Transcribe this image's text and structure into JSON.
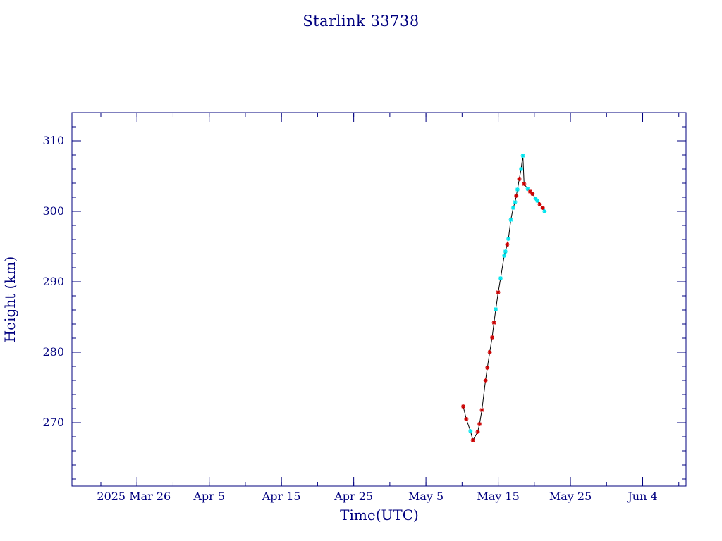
{
  "chart_data": {
    "type": "line",
    "title": "Starlink 33738",
    "xlabel": "Time(UTC)",
    "ylabel": "Height (km)",
    "x_axis": {
      "kind": "date",
      "range": [
        "2025-03-17",
        "2025-06-10"
      ],
      "major_ticks": [
        {
          "date": "2025-03-26",
          "label": "2025 Mar 26"
        },
        {
          "date": "2025-04-05",
          "label": "Apr  5"
        },
        {
          "date": "2025-04-15",
          "label": "Apr 15"
        },
        {
          "date": "2025-04-25",
          "label": "Apr 25"
        },
        {
          "date": "2025-05-05",
          "label": "May  5"
        },
        {
          "date": "2025-05-15",
          "label": "May 15"
        },
        {
          "date": "2025-05-25",
          "label": "May 25"
        },
        {
          "date": "2025-06-04",
          "label": "Jun  4"
        }
      ]
    },
    "y_axis": {
      "range": [
        261,
        314
      ],
      "major_ticks": [
        270,
        280,
        290,
        300,
        310
      ]
    },
    "grid": false,
    "line_color": "#000000",
    "marker_colors": {
      "red": "#cc0000",
      "cyan": "#00e5ee"
    },
    "points": [
      {
        "t": "2025-05-10T04:00",
        "h": 272.3,
        "c": "red"
      },
      {
        "t": "2025-05-10T14:00",
        "h": 270.5,
        "c": "red"
      },
      {
        "t": "2025-05-11T04:00",
        "h": 268.8,
        "c": "cyan"
      },
      {
        "t": "2025-05-11T12:00",
        "h": 267.5,
        "c": "red"
      },
      {
        "t": "2025-05-12T04:00",
        "h": 268.7,
        "c": "red"
      },
      {
        "t": "2025-05-12T10:00",
        "h": 269.8,
        "c": "red"
      },
      {
        "t": "2025-05-12T18:00",
        "h": 271.8,
        "c": "red"
      },
      {
        "t": "2025-05-13T06:00",
        "h": 276.0,
        "c": "red"
      },
      {
        "t": "2025-05-13T12:00",
        "h": 277.8,
        "c": "red"
      },
      {
        "t": "2025-05-13T20:00",
        "h": 280.0,
        "c": "red"
      },
      {
        "t": "2025-05-14T04:00",
        "h": 282.1,
        "c": "red"
      },
      {
        "t": "2025-05-14T10:00",
        "h": 284.2,
        "c": "red"
      },
      {
        "t": "2025-05-14T16:00",
        "h": 286.1,
        "c": "cyan"
      },
      {
        "t": "2025-05-15T00:00",
        "h": 288.5,
        "c": "red"
      },
      {
        "t": "2025-05-15T08:00",
        "h": 290.5,
        "c": "cyan"
      },
      {
        "t": "2025-05-15T20:00",
        "h": 293.7,
        "c": "cyan"
      },
      {
        "t": "2025-05-16T00:00",
        "h": 294.3,
        "c": "cyan"
      },
      {
        "t": "2025-05-16T06:00",
        "h": 295.3,
        "c": "red"
      },
      {
        "t": "2025-05-16T10:00",
        "h": 296.1,
        "c": "cyan"
      },
      {
        "t": "2025-05-16T18:00",
        "h": 298.8,
        "c": "cyan"
      },
      {
        "t": "2025-05-17T02:00",
        "h": 300.5,
        "c": "cyan"
      },
      {
        "t": "2025-05-17T08:00",
        "h": 301.3,
        "c": "cyan"
      },
      {
        "t": "2025-05-17T12:00",
        "h": 302.2,
        "c": "red"
      },
      {
        "t": "2025-05-17T16:00",
        "h": 303.1,
        "c": "cyan"
      },
      {
        "t": "2025-05-17T22:00",
        "h": 304.6,
        "c": "red"
      },
      {
        "t": "2025-05-18T04:00",
        "h": 306.0,
        "c": "cyan"
      },
      {
        "t": "2025-05-18T10:00",
        "h": 307.9,
        "c": "cyan"
      },
      {
        "t": "2025-05-18T14:00",
        "h": 303.9,
        "c": "red"
      },
      {
        "t": "2025-05-19T02:00",
        "h": 303.2,
        "c": "cyan"
      },
      {
        "t": "2025-05-19T10:00",
        "h": 302.8,
        "c": "red"
      },
      {
        "t": "2025-05-19T18:00",
        "h": 302.5,
        "c": "red"
      },
      {
        "t": "2025-05-20T04:00",
        "h": 301.8,
        "c": "cyan"
      },
      {
        "t": "2025-05-20T10:00",
        "h": 301.5,
        "c": "cyan"
      },
      {
        "t": "2025-05-20T18:00",
        "h": 301.0,
        "c": "red"
      },
      {
        "t": "2025-05-21T04:00",
        "h": 300.5,
        "c": "red"
      },
      {
        "t": "2025-05-21T10:00",
        "h": 300.0,
        "c": "cyan"
      }
    ]
  }
}
